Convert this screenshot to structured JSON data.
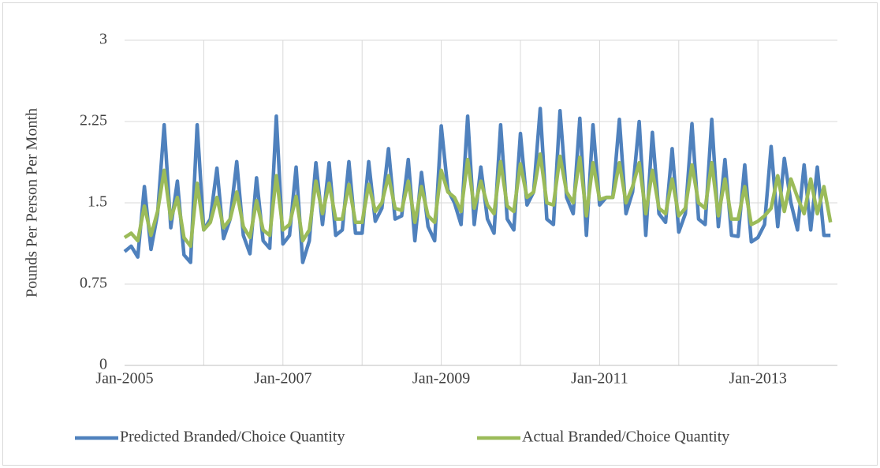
{
  "chart_data": {
    "type": "line",
    "ylabel": "Pounds Per Person Per Month",
    "categories": [
      "Jan-2005",
      null,
      null,
      null,
      null,
      null,
      null,
      null,
      null,
      null,
      null,
      null,
      null,
      null,
      null,
      null,
      null,
      null,
      null,
      null,
      null,
      null,
      null,
      null,
      "Jan-2007",
      null,
      null,
      null,
      null,
      null,
      null,
      null,
      null,
      null,
      null,
      null,
      null,
      null,
      null,
      null,
      null,
      null,
      null,
      null,
      null,
      null,
      null,
      null,
      "Jan-2009",
      null,
      null,
      null,
      null,
      null,
      null,
      null,
      null,
      null,
      null,
      null,
      null,
      null,
      null,
      null,
      null,
      null,
      null,
      null,
      null,
      null,
      null,
      null,
      "Jan-2011",
      null,
      null,
      null,
      null,
      null,
      null,
      null,
      null,
      null,
      null,
      null,
      null,
      null,
      null,
      null,
      null,
      null,
      null,
      null,
      null,
      null,
      null,
      null,
      "Jan-2013",
      null,
      null,
      null,
      null,
      null,
      null,
      null,
      null,
      null,
      null,
      null
    ],
    "series": [
      {
        "name": "Predicted Branded/Choice Quantity",
        "color": "#4f81bd",
        "values": [
          1.05,
          1.1,
          1.0,
          1.65,
          1.07,
          1.4,
          2.22,
          1.27,
          1.7,
          1.02,
          0.95,
          2.22,
          1.25,
          1.35,
          1.82,
          1.17,
          1.35,
          1.88,
          1.2,
          1.03,
          1.73,
          1.15,
          1.08,
          2.3,
          1.12,
          1.2,
          1.83,
          0.95,
          1.15,
          1.87,
          1.3,
          1.87,
          1.2,
          1.25,
          1.88,
          1.22,
          1.22,
          1.88,
          1.33,
          1.45,
          2.0,
          1.35,
          1.38,
          1.9,
          1.15,
          1.78,
          1.28,
          1.15,
          2.21,
          1.62,
          1.5,
          1.3,
          2.3,
          1.3,
          1.83,
          1.35,
          1.22,
          2.22,
          1.35,
          1.25,
          2.14,
          1.48,
          1.6,
          2.37,
          1.35,
          1.3,
          2.35,
          1.55,
          1.4,
          2.28,
          1.2,
          2.22,
          1.48,
          1.55,
          1.55,
          2.27,
          1.4,
          1.6,
          2.25,
          1.2,
          2.15,
          1.4,
          1.32,
          2.0,
          1.23,
          1.4,
          2.23,
          1.35,
          1.3,
          2.27,
          1.28,
          1.9,
          1.2,
          1.19,
          1.85,
          1.14,
          1.18,
          1.3,
          2.02,
          1.28,
          1.91,
          1.5,
          1.25,
          1.85,
          1.25,
          1.83,
          1.2,
          1.2
        ]
      },
      {
        "name": "Actual Branded/Choice Quantity",
        "color": "#9bbb59",
        "values": [
          1.18,
          1.22,
          1.15,
          1.47,
          1.2,
          1.42,
          1.8,
          1.35,
          1.55,
          1.18,
          1.1,
          1.68,
          1.25,
          1.32,
          1.55,
          1.27,
          1.35,
          1.6,
          1.28,
          1.18,
          1.52,
          1.25,
          1.2,
          1.75,
          1.25,
          1.3,
          1.56,
          1.15,
          1.25,
          1.7,
          1.4,
          1.68,
          1.35,
          1.35,
          1.67,
          1.32,
          1.32,
          1.67,
          1.42,
          1.5,
          1.75,
          1.45,
          1.43,
          1.7,
          1.32,
          1.65,
          1.38,
          1.32,
          1.8,
          1.6,
          1.55,
          1.42,
          1.9,
          1.45,
          1.7,
          1.48,
          1.4,
          1.88,
          1.47,
          1.42,
          1.86,
          1.55,
          1.6,
          1.95,
          1.5,
          1.48,
          1.93,
          1.6,
          1.5,
          1.92,
          1.38,
          1.87,
          1.53,
          1.55,
          1.55,
          1.87,
          1.5,
          1.65,
          1.87,
          1.4,
          1.8,
          1.45,
          1.4,
          1.72,
          1.38,
          1.45,
          1.85,
          1.5,
          1.45,
          1.87,
          1.38,
          1.72,
          1.35,
          1.35,
          1.65,
          1.3,
          1.33,
          1.38,
          1.45,
          1.75,
          1.42,
          1.72,
          1.55,
          1.4,
          1.72,
          1.4,
          1.65,
          1.32
        ]
      }
    ],
    "ylim": [
      0,
      3
    ],
    "yticks": [
      0,
      0.75,
      1.5,
      2.25,
      3
    ],
    "grid": true,
    "legend": "bottom"
  }
}
